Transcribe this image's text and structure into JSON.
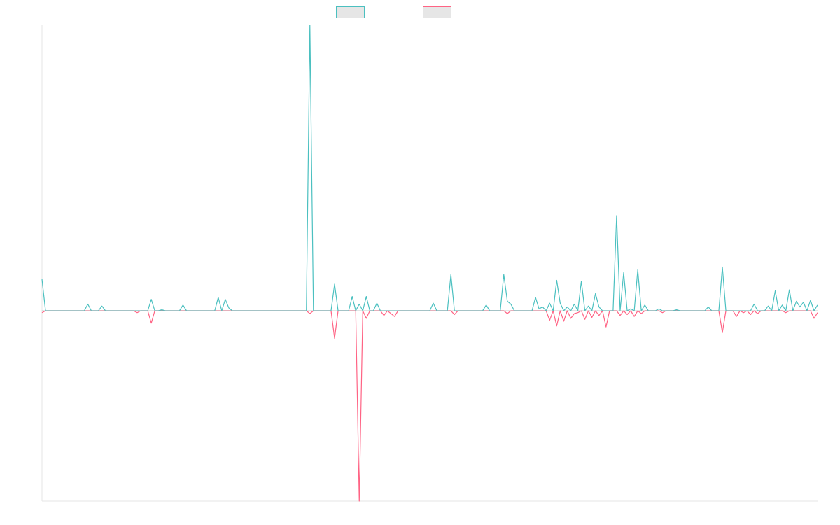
{
  "chart_data": {
    "type": "line",
    "title": "",
    "xlabel": "",
    "ylabel": "",
    "x_count": 221,
    "ylim": [
      -200,
      300
    ],
    "grid": false,
    "legend_position": "top",
    "series": [
      {
        "name": "",
        "color": "#4bc0c0",
        "fill": "#e6e6e6",
        "points": [
          [
            0,
            33
          ],
          [
            1,
            0
          ],
          [
            12,
            0
          ],
          [
            13,
            7
          ],
          [
            14,
            0
          ],
          [
            16,
            0
          ],
          [
            17,
            5
          ],
          [
            18,
            0
          ],
          [
            30,
            0
          ],
          [
            31,
            12
          ],
          [
            32,
            0
          ],
          [
            34,
            1
          ],
          [
            35,
            0
          ],
          [
            39,
            0
          ],
          [
            40,
            6
          ],
          [
            41,
            0
          ],
          [
            49,
            0
          ],
          [
            50,
            14
          ],
          [
            51,
            0
          ],
          [
            52,
            12
          ],
          [
            53,
            3
          ],
          [
            54,
            0
          ],
          [
            75,
            0
          ],
          [
            76,
            300
          ],
          [
            77,
            0
          ],
          [
            82,
            0
          ],
          [
            83,
            28
          ],
          [
            84,
            0
          ],
          [
            87,
            0
          ],
          [
            88,
            15
          ],
          [
            89,
            0
          ],
          [
            90,
            7
          ],
          [
            91,
            0
          ],
          [
            92,
            15
          ],
          [
            93,
            0
          ],
          [
            95,
            8
          ],
          [
            96,
            0
          ],
          [
            110,
            0
          ],
          [
            111,
            8
          ],
          [
            112,
            0
          ],
          [
            115,
            0
          ],
          [
            116,
            38
          ],
          [
            117,
            0
          ],
          [
            125,
            0
          ],
          [
            126,
            6
          ],
          [
            127,
            0
          ],
          [
            130,
            0
          ],
          [
            131,
            38
          ],
          [
            132,
            10
          ],
          [
            133,
            7
          ],
          [
            134,
            0
          ],
          [
            139,
            0
          ],
          [
            140,
            14
          ],
          [
            141,
            2
          ],
          [
            142,
            4
          ],
          [
            143,
            0
          ],
          [
            144,
            8
          ],
          [
            145,
            0
          ],
          [
            146,
            32
          ],
          [
            147,
            8
          ],
          [
            148,
            0
          ],
          [
            149,
            4
          ],
          [
            150,
            0
          ],
          [
            151,
            7
          ],
          [
            152,
            0
          ],
          [
            153,
            31
          ],
          [
            154,
            0
          ],
          [
            155,
            5
          ],
          [
            156,
            0
          ],
          [
            157,
            18
          ],
          [
            158,
            4
          ],
          [
            159,
            0
          ],
          [
            162,
            0
          ],
          [
            163,
            100
          ],
          [
            164,
            0
          ],
          [
            165,
            40
          ],
          [
            166,
            0
          ],
          [
            167,
            2
          ],
          [
            168,
            0
          ],
          [
            169,
            43
          ],
          [
            170,
            0
          ],
          [
            171,
            6
          ],
          [
            172,
            0
          ],
          [
            174,
            0
          ],
          [
            175,
            2
          ],
          [
            176,
            0
          ],
          [
            179,
            0
          ],
          [
            180,
            1
          ],
          [
            181,
            0
          ],
          [
            188,
            0
          ],
          [
            189,
            4
          ],
          [
            190,
            0
          ],
          [
            192,
            0
          ],
          [
            193,
            46
          ],
          [
            194,
            0
          ],
          [
            197,
            0
          ],
          [
            198,
            0
          ],
          [
            201,
            0
          ],
          [
            202,
            7
          ],
          [
            203,
            0
          ],
          [
            205,
            0
          ],
          [
            206,
            5
          ],
          [
            207,
            0
          ],
          [
            208,
            21
          ],
          [
            209,
            0
          ],
          [
            210,
            6
          ],
          [
            211,
            0
          ],
          [
            212,
            22
          ],
          [
            213,
            0
          ],
          [
            214,
            10
          ],
          [
            215,
            4
          ],
          [
            216,
            9
          ],
          [
            217,
            0
          ],
          [
            218,
            11
          ],
          [
            219,
            0
          ],
          [
            220,
            6
          ]
        ]
      },
      {
        "name": "",
        "color": "#ff6384",
        "fill": "#e6e6e6",
        "points": [
          [
            0,
            -2
          ],
          [
            1,
            0
          ],
          [
            26,
            0
          ],
          [
            27,
            -2
          ],
          [
            28,
            0
          ],
          [
            30,
            0
          ],
          [
            31,
            -13
          ],
          [
            32,
            0
          ],
          [
            75,
            0
          ],
          [
            76,
            -3
          ],
          [
            77,
            0
          ],
          [
            82,
            0
          ],
          [
            83,
            -29
          ],
          [
            84,
            0
          ],
          [
            89,
            0
          ],
          [
            90,
            -200
          ],
          [
            91,
            0
          ],
          [
            92,
            -8
          ],
          [
            93,
            0
          ],
          [
            96,
            0
          ],
          [
            97,
            -5
          ],
          [
            98,
            0
          ],
          [
            99,
            -3
          ],
          [
            100,
            -6
          ],
          [
            101,
            0
          ],
          [
            116,
            0
          ],
          [
            117,
            -4
          ],
          [
            118,
            0
          ],
          [
            131,
            0
          ],
          [
            132,
            -3
          ],
          [
            133,
            0
          ],
          [
            143,
            0
          ],
          [
            144,
            -10
          ],
          [
            145,
            0
          ],
          [
            146,
            -16
          ],
          [
            147,
            0
          ],
          [
            148,
            -11
          ],
          [
            149,
            0
          ],
          [
            150,
            -8
          ],
          [
            151,
            -3
          ],
          [
            152,
            -2
          ],
          [
            153,
            0
          ],
          [
            154,
            -9
          ],
          [
            155,
            0
          ],
          [
            156,
            -7
          ],
          [
            157,
            0
          ],
          [
            158,
            -5
          ],
          [
            159,
            0
          ],
          [
            160,
            -17
          ],
          [
            161,
            0
          ],
          [
            163,
            0
          ],
          [
            164,
            -5
          ],
          [
            165,
            0
          ],
          [
            166,
            -4
          ],
          [
            167,
            0
          ],
          [
            168,
            -6
          ],
          [
            169,
            0
          ],
          [
            170,
            -3
          ],
          [
            171,
            0
          ],
          [
            175,
            0
          ],
          [
            176,
            -2
          ],
          [
            177,
            0
          ],
          [
            192,
            0
          ],
          [
            193,
            -23
          ],
          [
            194,
            0
          ],
          [
            196,
            0
          ],
          [
            197,
            -6
          ],
          [
            198,
            0
          ],
          [
            199,
            -2
          ],
          [
            200,
            0
          ],
          [
            201,
            -4
          ],
          [
            202,
            0
          ],
          [
            203,
            -3
          ],
          [
            204,
            0
          ],
          [
            210,
            0
          ],
          [
            211,
            -2
          ],
          [
            212,
            0
          ],
          [
            218,
            0
          ],
          [
            219,
            -8
          ],
          [
            220,
            -2
          ]
        ]
      }
    ]
  }
}
